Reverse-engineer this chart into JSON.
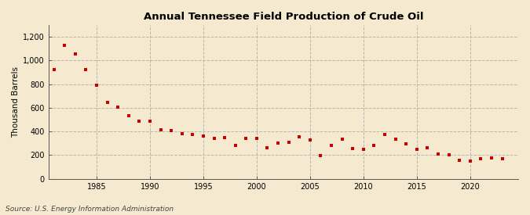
{
  "title": "Annual Tennessee Field Production of Crude Oil",
  "ylabel": "Thousand Barrels",
  "source": "Source: U.S. Energy Information Administration",
  "background_color": "#f5e9d0",
  "marker_color": "#cc0000",
  "grid_color": "#b0b0b0",
  "years": [
    1981,
    1982,
    1983,
    1984,
    1985,
    1986,
    1987,
    1988,
    1989,
    1990,
    1991,
    1992,
    1993,
    1994,
    1995,
    1996,
    1997,
    1998,
    1999,
    2000,
    2001,
    2002,
    2003,
    2004,
    2005,
    2006,
    2007,
    2008,
    2009,
    2010,
    2011,
    2012,
    2013,
    2014,
    2015,
    2016,
    2017,
    2018,
    2019,
    2020,
    2021,
    2022,
    2023
  ],
  "values": [
    920,
    1130,
    1055,
    920,
    790,
    645,
    605,
    530,
    485,
    490,
    415,
    410,
    380,
    375,
    360,
    340,
    345,
    285,
    340,
    340,
    265,
    300,
    305,
    355,
    330,
    195,
    280,
    335,
    255,
    250,
    285,
    375,
    335,
    295,
    250,
    265,
    210,
    205,
    155,
    150,
    170,
    175,
    170
  ],
  "ylim": [
    0,
    1300
  ],
  "yticks": [
    0,
    200,
    400,
    600,
    800,
    1000,
    1200
  ],
  "ytick_labels": [
    "0",
    "200",
    "400",
    "600",
    "800",
    "1,000",
    "1,200"
  ],
  "xticks": [
    1985,
    1990,
    1995,
    2000,
    2005,
    2010,
    2015,
    2020
  ],
  "xlim": [
    1980.5,
    2024.5
  ]
}
